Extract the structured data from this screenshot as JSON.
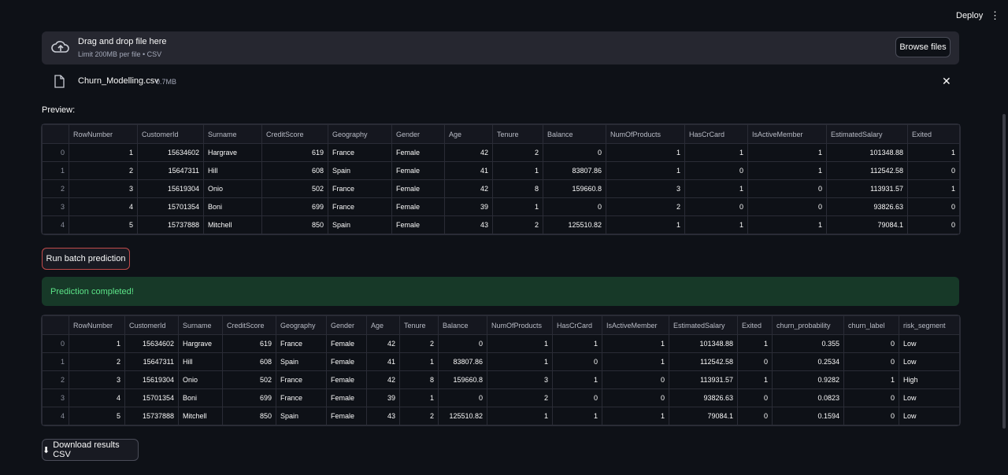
{
  "header": {
    "deploy": "Deploy"
  },
  "uploader": {
    "prompt": "Drag and drop file here",
    "limit": "Limit 200MB per file • CSV",
    "browse": "Browse files"
  },
  "file": {
    "name": "Churn_Modelling.csv",
    "size": "0.7MB"
  },
  "preview_label": "Preview:",
  "table1": {
    "columns": [
      "RowNumber",
      "CustomerId",
      "Surname",
      "CreditScore",
      "Geography",
      "Gender",
      "Age",
      "Tenure",
      "Balance",
      "NumOfProducts",
      "HasCrCard",
      "IsActiveMember",
      "EstimatedSalary",
      "Exited"
    ],
    "rows": [
      [
        0,
        1,
        15634602,
        "Hargrave",
        619,
        "France",
        "Female",
        42,
        2,
        0,
        1,
        1,
        1,
        101348.88,
        1
      ],
      [
        1,
        2,
        15647311,
        "Hill",
        608,
        "Spain",
        "Female",
        41,
        1,
        83807.86,
        1,
        0,
        1,
        112542.58,
        0
      ],
      [
        2,
        3,
        15619304,
        "Onio",
        502,
        "France",
        "Female",
        42,
        8,
        159660.8,
        3,
        1,
        0,
        113931.57,
        1
      ],
      [
        3,
        4,
        15701354,
        "Boni",
        699,
        "France",
        "Female",
        39,
        1,
        0,
        2,
        0,
        0,
        93826.63,
        0
      ],
      [
        4,
        5,
        15737888,
        "Mitchell",
        850,
        "Spain",
        "Female",
        43,
        2,
        125510.82,
        1,
        1,
        1,
        79084.1,
        0
      ]
    ]
  },
  "run_button": "Run batch prediction",
  "success": "Prediction completed!",
  "table2": {
    "columns": [
      "RowNumber",
      "CustomerId",
      "Surname",
      "CreditScore",
      "Geography",
      "Gender",
      "Age",
      "Tenure",
      "Balance",
      "NumOfProducts",
      "HasCrCard",
      "IsActiveMember",
      "EstimatedSalary",
      "Exited",
      "churn_probability",
      "churn_label",
      "risk_segment"
    ],
    "rows": [
      [
        0,
        1,
        15634602,
        "Hargrave",
        619,
        "France",
        "Female",
        42,
        2,
        0,
        1,
        1,
        1,
        101348.88,
        1,
        0.355,
        0,
        "Low"
      ],
      [
        1,
        2,
        15647311,
        "Hill",
        608,
        "Spain",
        "Female",
        41,
        1,
        83807.86,
        1,
        0,
        1,
        112542.58,
        0,
        0.2534,
        0,
        "Low"
      ],
      [
        2,
        3,
        15619304,
        "Onio",
        502,
        "France",
        "Female",
        42,
        8,
        159660.8,
        3,
        1,
        0,
        113931.57,
        1,
        0.9282,
        1,
        "High"
      ],
      [
        3,
        4,
        15701354,
        "Boni",
        699,
        "France",
        "Female",
        39,
        1,
        0,
        2,
        0,
        0,
        93826.63,
        0,
        0.0823,
        0,
        "Low"
      ],
      [
        4,
        5,
        15737888,
        "Mitchell",
        850,
        "Spain",
        "Female",
        43,
        2,
        125510.82,
        1,
        1,
        1,
        79084.1,
        0,
        0.1594,
        0,
        "Low"
      ]
    ]
  },
  "download_button": "Download results CSV"
}
